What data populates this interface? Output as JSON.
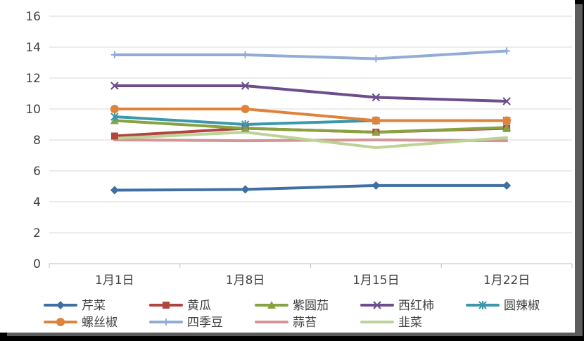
{
  "chart_data": {
    "type": "line",
    "title": "",
    "xlabel": "",
    "ylabel": "",
    "categories": [
      "1月1日",
      "1月8日",
      "1月15日",
      "1月22日"
    ],
    "ylim": [
      0,
      16
    ],
    "yticks": [
      0,
      2,
      4,
      6,
      8,
      10,
      12,
      14,
      16
    ],
    "grid": true,
    "legend_position": "bottom",
    "series": [
      {
        "name": "芹菜",
        "values": [
          4.75,
          4.8,
          5.05,
          5.05
        ],
        "color": "#3e6fa5",
        "marker": "diamond"
      },
      {
        "name": "黄瓜",
        "values": [
          8.25,
          8.75,
          8.5,
          8.75
        ],
        "color": "#b04542",
        "marker": "square"
      },
      {
        "name": "紫圆茄",
        "values": [
          9.25,
          8.75,
          8.5,
          8.8
        ],
        "color": "#86a33f",
        "marker": "triangle"
      },
      {
        "name": "西红柿",
        "values": [
          11.5,
          11.5,
          10.75,
          10.5
        ],
        "color": "#6d4e8c",
        "marker": "x"
      },
      {
        "name": "圆辣椒",
        "values": [
          9.5,
          9.0,
          9.25,
          9.25
        ],
        "color": "#3b97a9",
        "marker": "star"
      },
      {
        "name": "螺丝椒",
        "values": [
          10.0,
          10.0,
          9.25,
          9.25
        ],
        "color": "#e0823a",
        "marker": "circle"
      },
      {
        "name": "四季豆",
        "values": [
          13.5,
          13.5,
          13.25,
          13.75
        ],
        "color": "#93acd6",
        "marker": "plus"
      },
      {
        "name": "蒜苔",
        "values": [
          8.0,
          7.95,
          8.0,
          7.95
        ],
        "color": "#d49593",
        "marker": "none"
      },
      {
        "name": "韭菜",
        "values": [
          8.1,
          8.5,
          7.5,
          8.15
        ],
        "color": "#bcd397",
        "marker": "none"
      }
    ]
  }
}
